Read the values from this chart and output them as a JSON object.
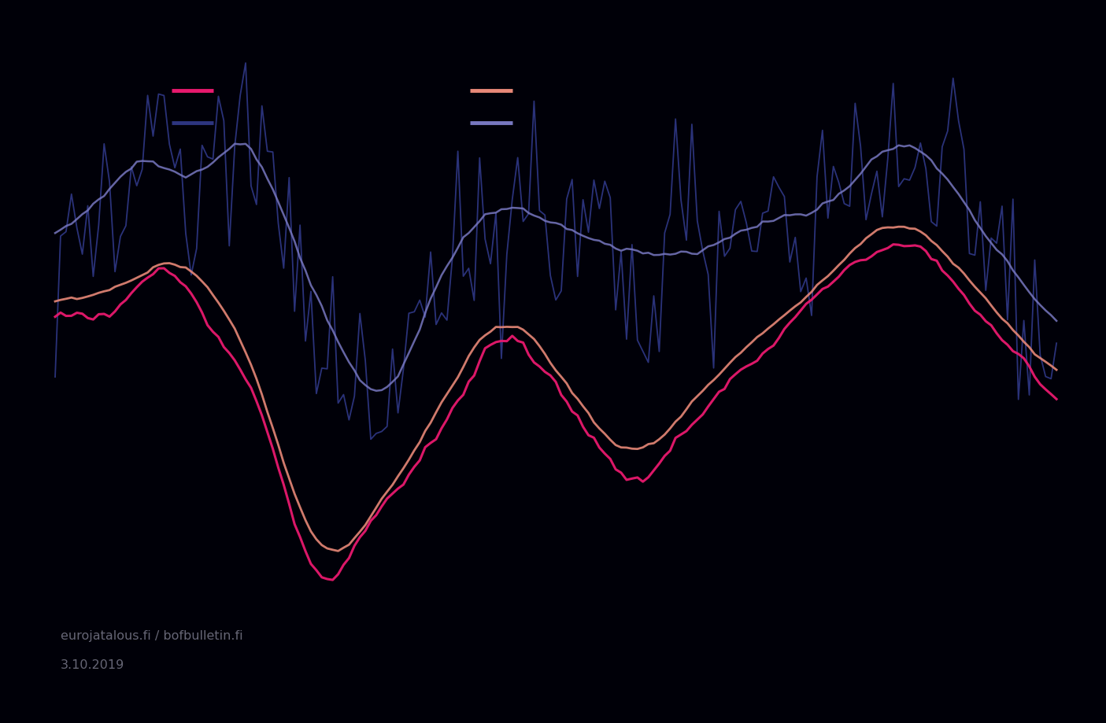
{
  "background_color": "#000008",
  "line_magenta_color": "#e8196e",
  "line_salmon_color": "#e88878",
  "line_darkblue_color": "#2d3580",
  "line_medblue_color": "#7878c0",
  "watermark_line1": "eurojatalous.fi / bofbulletin.fi",
  "watermark_line2": "3.10.2019",
  "text_color": "#888899",
  "figsize": [
    14.05,
    9.19
  ],
  "dpi": 100
}
